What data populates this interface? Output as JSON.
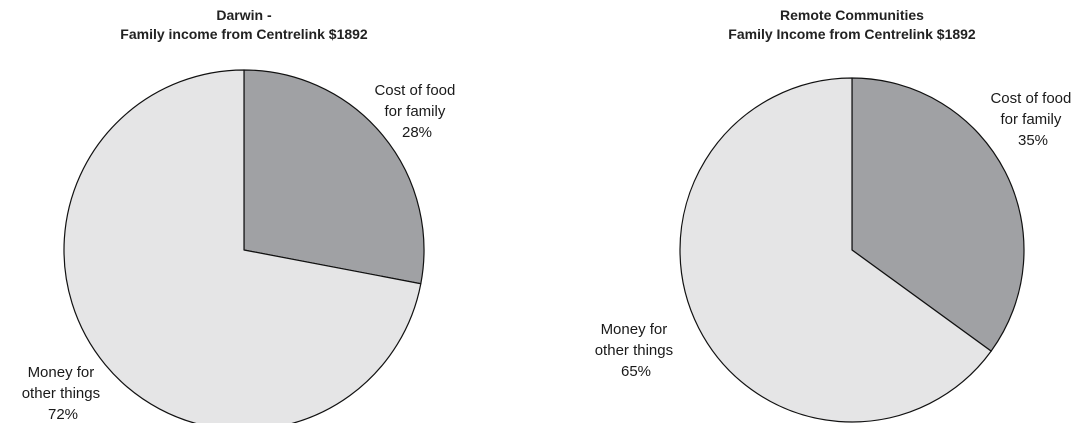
{
  "chart_data": [
    {
      "type": "pie",
      "title": "Darwin -",
      "subtitle": "Family income from Centrelink $1892",
      "slices": [
        {
          "label_lines": [
            "Cost of food",
            "for family"
          ],
          "value_label": "28%",
          "value": 28,
          "color": "#a0a1a4"
        },
        {
          "label_lines": [
            "Money for",
            "other things"
          ],
          "value_label": "72%",
          "value": 72,
          "color": "#e5e5e6"
        }
      ]
    },
    {
      "type": "pie",
      "title": "Remote Communities",
      "subtitle": "Family Income from Centrelink $1892",
      "slices": [
        {
          "label_lines": [
            "Cost of food",
            "for family"
          ],
          "value_label": "35%",
          "value": 35,
          "color": "#a0a1a4"
        },
        {
          "label_lines": [
            "Money for",
            "other things"
          ],
          "value_label": "65%",
          "value": 65,
          "color": "#e5e5e6"
        }
      ]
    }
  ]
}
